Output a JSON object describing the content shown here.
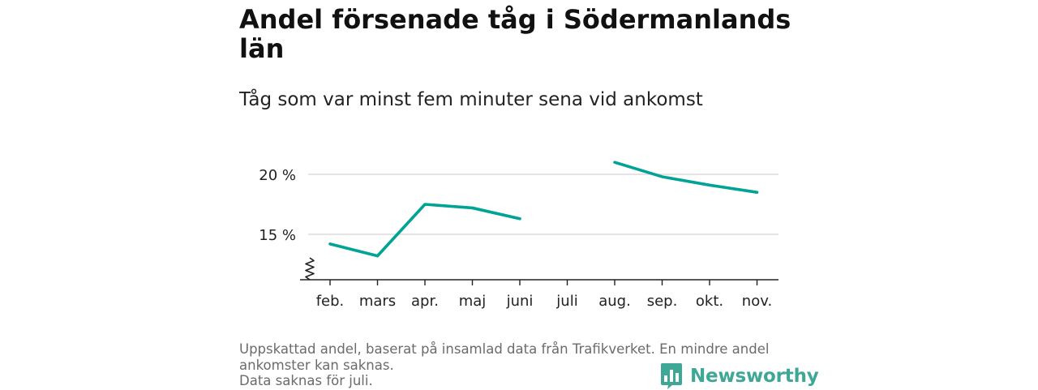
{
  "chart_data": {
    "type": "line",
    "title": "Andel försenade tåg i Södermanlands län",
    "subtitle": "Tåg som var minst fem minuter sena vid ankomst",
    "categories": [
      "feb.",
      "mars",
      "apr.",
      "maj",
      "juni",
      "juli",
      "aug.",
      "sep.",
      "okt.",
      "nov."
    ],
    "series": [
      {
        "values": [
          14.2,
          13.2,
          17.5,
          17.2,
          16.3,
          null,
          21.0,
          19.8,
          19.1,
          18.5
        ],
        "color": "#00a395"
      }
    ],
    "yticks": [
      {
        "value": 15,
        "label": "15 %"
      },
      {
        "value": 20,
        "label": "20 %"
      }
    ],
    "ylim": [
      11.2,
      21.5
    ],
    "y_axis_break": true,
    "grid": true,
    "xlabel": "",
    "ylabel": ""
  },
  "notes": [
    "Uppskattad andel, baserat på insamlad data från Trafikverket. En mindre andel",
    "ankomster kan saknas.",
    "Data saknas för juli."
  ],
  "logo": {
    "text": "Newsworthy",
    "icon": "bar-chart-speech-bubble-icon",
    "color": "#3fa796"
  }
}
